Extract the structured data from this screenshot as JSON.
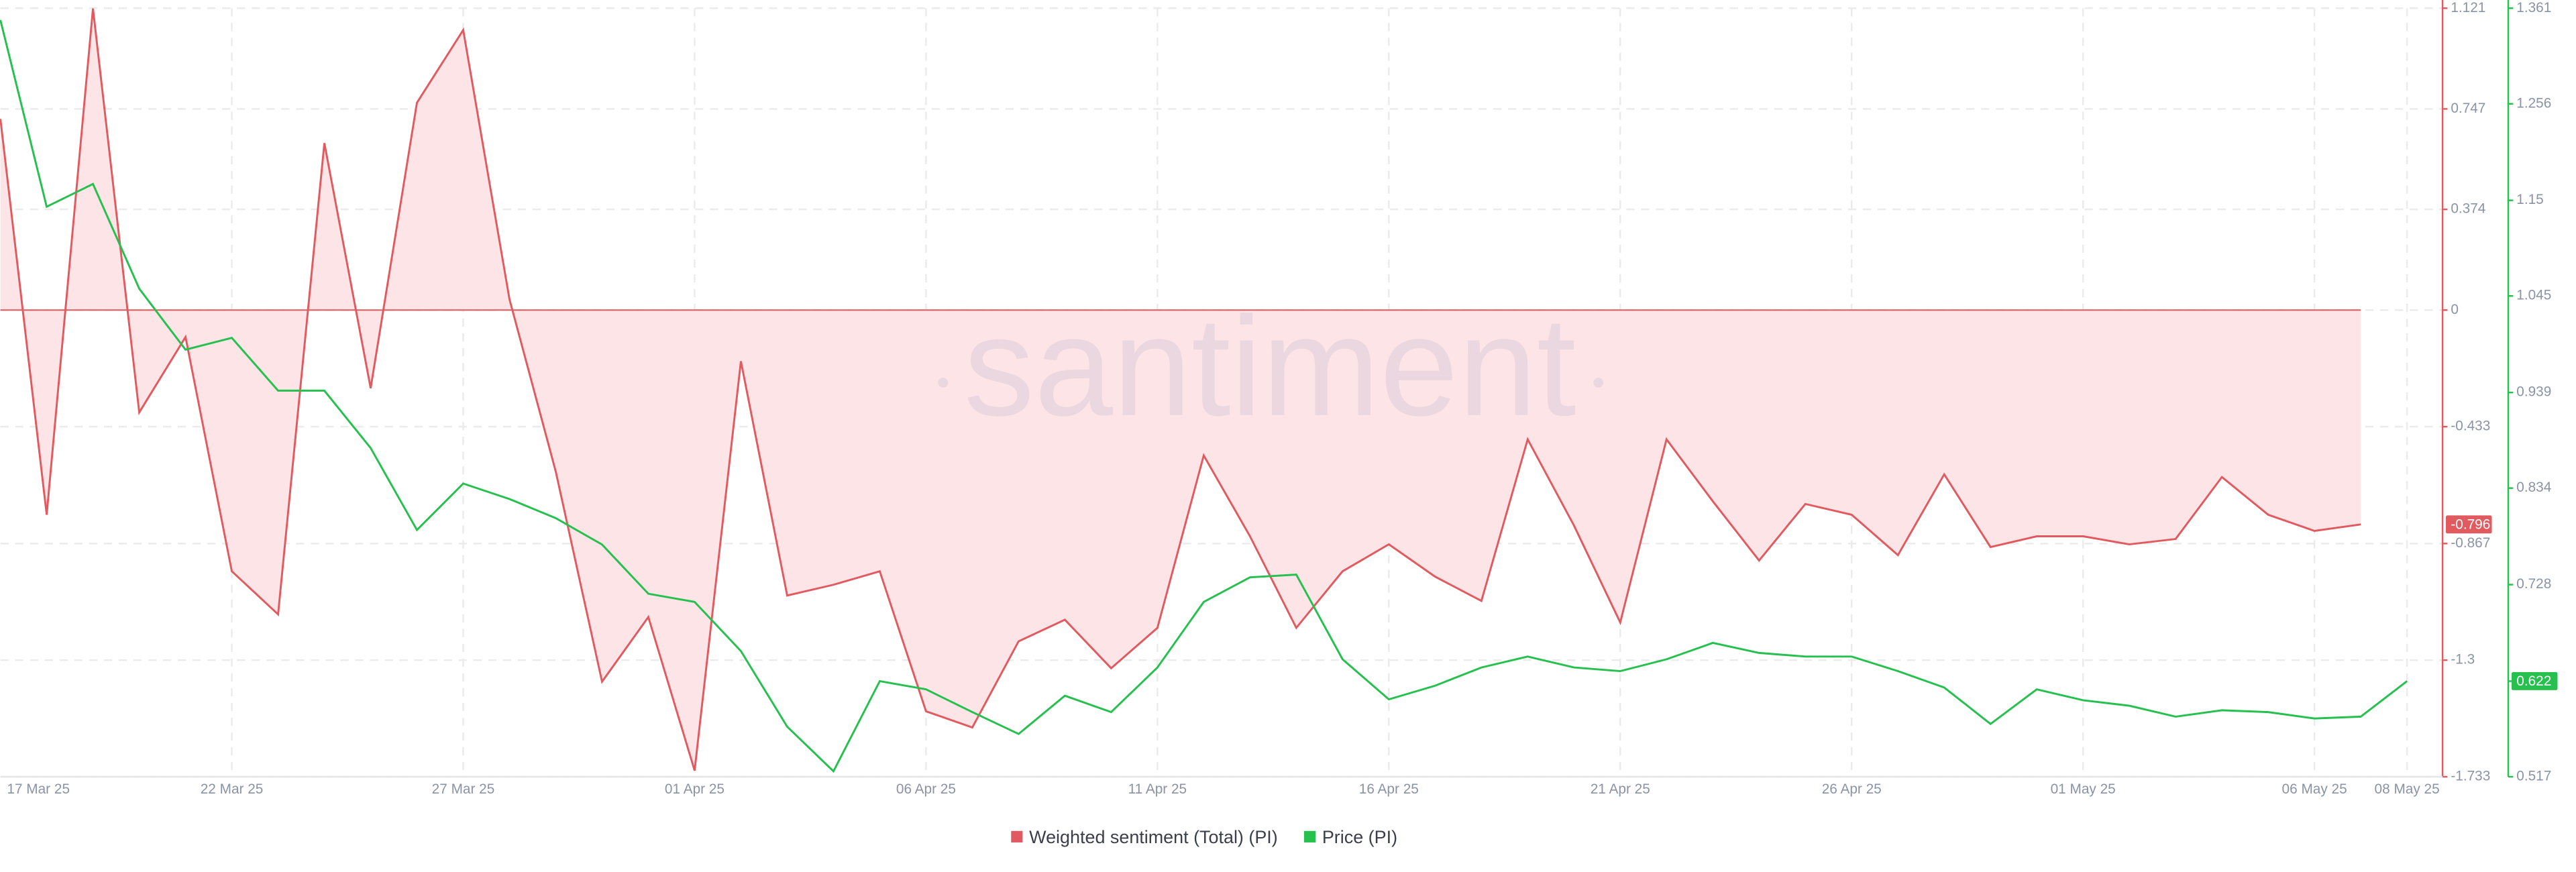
{
  "chart_data": {
    "type": "line",
    "watermark": "santiment",
    "categories": [
      "17 Mar 25",
      null,
      null,
      null,
      null,
      "22 Mar 25",
      null,
      null,
      null,
      null,
      "27 Mar 25",
      null,
      null,
      null,
      null,
      "01 Apr 25",
      null,
      null,
      null,
      null,
      "06 Apr 25",
      null,
      null,
      null,
      null,
      "11 Apr 25",
      null,
      null,
      null,
      null,
      "16 Apr 25",
      null,
      null,
      null,
      null,
      "21 Apr 25",
      null,
      null,
      null,
      null,
      "26 Apr 25",
      null,
      null,
      null,
      null,
      "01 May 25",
      null,
      null,
      null,
      null,
      "06 May 25",
      null,
      "08 May 25"
    ],
    "series": [
      {
        "name": "Weighted sentiment (Total) (PI)",
        "color": "#e05a5f",
        "fill": "#fde4e6",
        "axis": "y",
        "values": [
          0.71,
          -0.76,
          1.12,
          -0.38,
          -0.1,
          -0.97,
          -1.13,
          0.62,
          -0.29,
          0.77,
          1.04,
          0.04,
          -0.6,
          -1.38,
          -1.14,
          -1.71,
          -0.19,
          -1.06,
          -1.02,
          -0.97,
          -1.49,
          -1.55,
          -1.23,
          -1.15,
          -1.33,
          -1.18,
          -0.54,
          -0.84,
          -1.18,
          -0.97,
          -0.87,
          -0.99,
          -1.08,
          -0.48,
          -0.8,
          -1.16,
          -0.48,
          -0.71,
          -0.93,
          -0.72,
          -0.76,
          -0.91,
          -0.61,
          -0.88,
          -0.84,
          -0.84,
          -0.87,
          -0.85,
          -0.62,
          -0.76,
          -0.82,
          -0.796,
          null
        ]
      },
      {
        "name": "Price (PI)",
        "color": "#26c04f",
        "axis": "y2",
        "values": [
          1.348,
          1.143,
          1.168,
          1.053,
          0.986,
          0.999,
          0.941,
          0.941,
          0.878,
          0.788,
          0.839,
          0.822,
          0.801,
          0.772,
          0.718,
          0.709,
          0.655,
          0.572,
          0.523,
          0.622,
          0.613,
          0.588,
          0.564,
          0.606,
          0.588,
          0.637,
          0.709,
          0.736,
          0.739,
          0.646,
          0.602,
          0.617,
          0.637,
          0.649,
          0.637,
          0.633,
          0.646,
          0.664,
          0.653,
          0.649,
          0.649,
          0.633,
          0.615,
          0.575,
          0.613,
          0.601,
          0.595,
          0.583,
          0.59,
          0.588,
          0.581,
          0.583,
          0.622
        ]
      }
    ],
    "ylim": [
      -1.733,
      1.121
    ],
    "yticks": [
      1.121,
      0.747,
      0.374,
      0,
      -0.433,
      -0.867,
      -1.3,
      -1.733
    ],
    "y2lim": [
      0.517,
      1.361
    ],
    "y2ticks": [
      1.361,
      1.256,
      1.15,
      1.045,
      0.939,
      0.834,
      0.728,
      0.622,
      0.517
    ],
    "grid": true,
    "legend": "bottom"
  }
}
